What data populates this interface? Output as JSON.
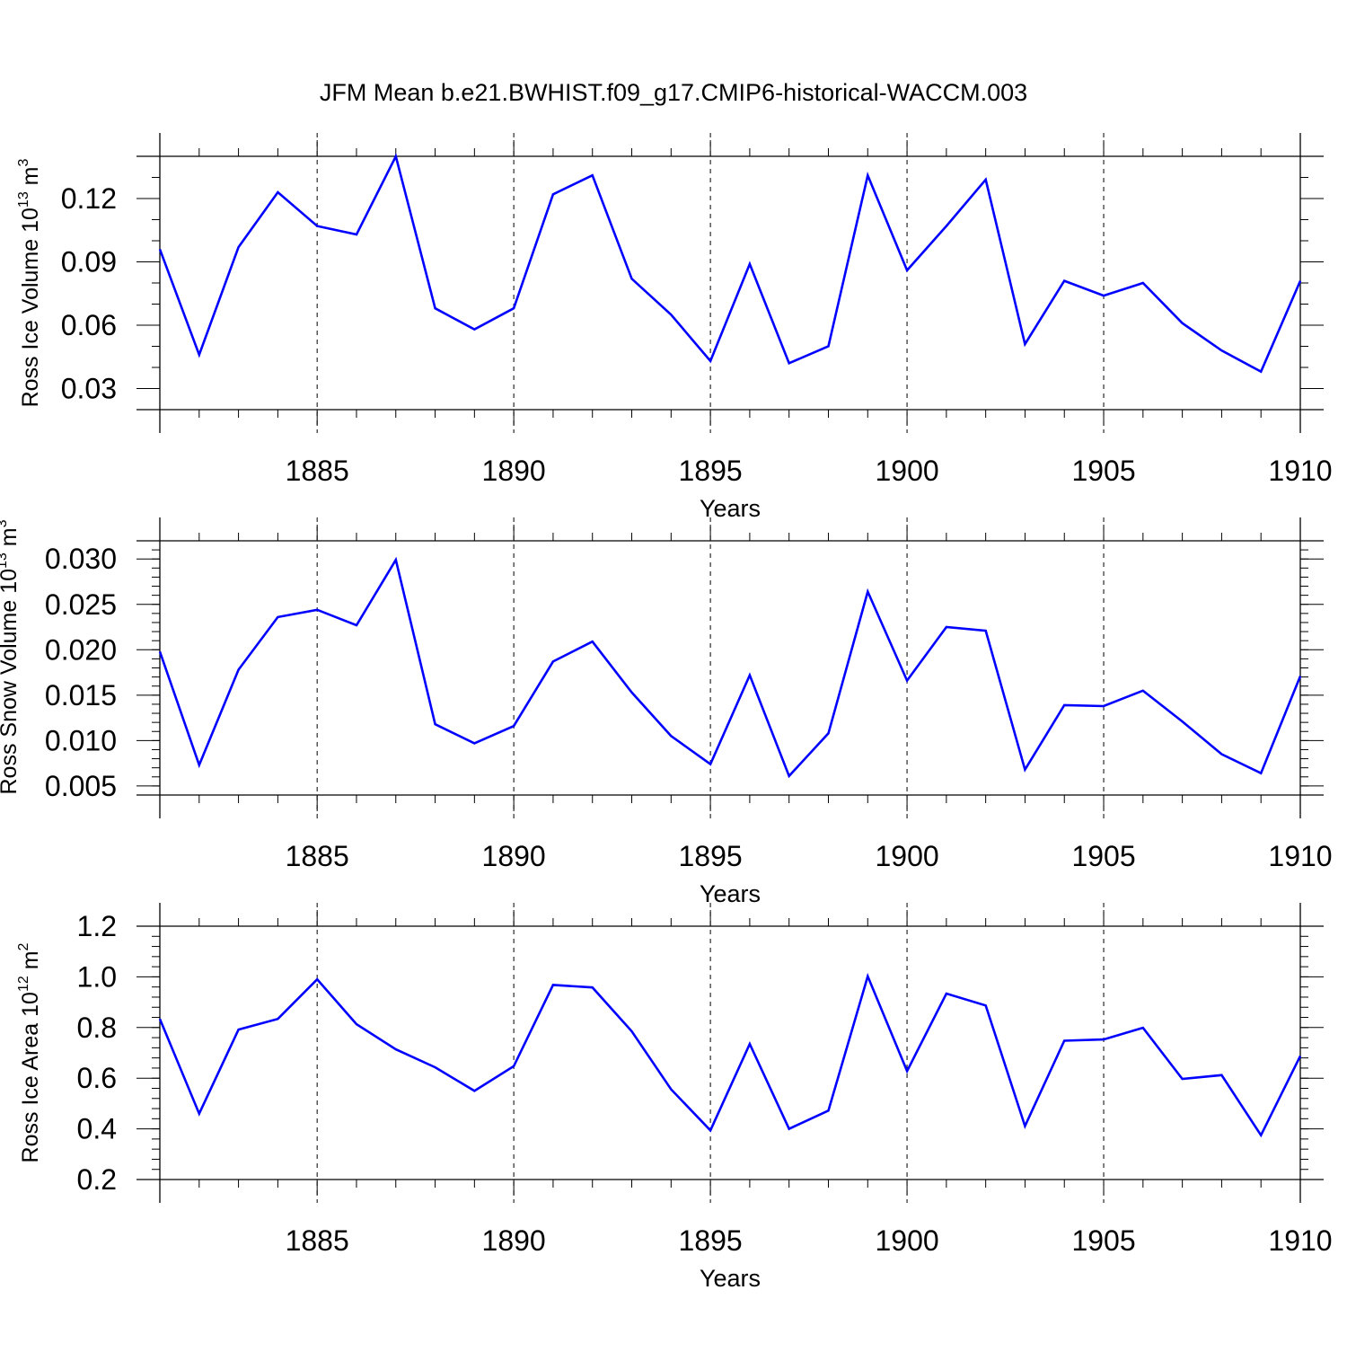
{
  "title": "JFM Mean b.e21.BWHIST.f09_g17.CMIP6-historical-WACCM.003",
  "colors": {
    "line": "#0000ff",
    "axis": "#000000",
    "grid": "#000000"
  },
  "chart_data": [
    {
      "type": "line",
      "xlabel": "Years",
      "ylabel": {
        "prefix": "Ross Ice Volume 10",
        "exp1": "13",
        "mid": " m",
        "exp2": "3"
      },
      "xlim": [
        1881,
        1910
      ],
      "ylim": [
        0.02,
        0.14
      ],
      "xticks": [
        1885,
        1890,
        1895,
        1900,
        1905,
        1910
      ],
      "yticks": [
        0.03,
        0.06,
        0.09,
        0.12
      ],
      "ytick_labels": [
        "0.03",
        "0.06",
        "0.09",
        "0.12"
      ],
      "ytick_minor": 0.01,
      "grid": "vertical-dashed",
      "x": [
        1881,
        1882,
        1883,
        1884,
        1885,
        1886,
        1887,
        1888,
        1889,
        1890,
        1891,
        1892,
        1893,
        1894,
        1895,
        1896,
        1897,
        1898,
        1899,
        1900,
        1901,
        1902,
        1903,
        1904,
        1905,
        1906,
        1907,
        1908,
        1909,
        1910
      ],
      "values": [
        0.096,
        0.046,
        0.097,
        0.123,
        0.107,
        0.103,
        0.14,
        0.068,
        0.058,
        0.068,
        0.122,
        0.131,
        0.082,
        0.065,
        0.043,
        0.089,
        0.042,
        0.05,
        0.131,
        0.086,
        0.107,
        0.129,
        0.051,
        0.081,
        0.074,
        0.08,
        0.061,
        0.048,
        0.038,
        0.081
      ]
    },
    {
      "type": "line",
      "xlabel": "Years",
      "ylabel": {
        "prefix": "Ross Snow Volume 10",
        "exp1": "13",
        "mid": " m",
        "exp2": "3"
      },
      "xlim": [
        1881,
        1910
      ],
      "ylim": [
        0.004,
        0.032
      ],
      "xticks": [
        1885,
        1890,
        1895,
        1900,
        1905,
        1910
      ],
      "yticks": [
        0.005,
        0.01,
        0.015,
        0.02,
        0.025,
        0.03
      ],
      "ytick_labels": [
        "0.005",
        "0.010",
        "0.015",
        "0.020",
        "0.025",
        "0.030"
      ],
      "ytick_minor": 0.001,
      "grid": "vertical-dashed",
      "x": [
        1881,
        1882,
        1883,
        1884,
        1885,
        1886,
        1887,
        1888,
        1889,
        1890,
        1891,
        1892,
        1893,
        1894,
        1895,
        1896,
        1897,
        1898,
        1899,
        1900,
        1901,
        1902,
        1903,
        1904,
        1905,
        1906,
        1907,
        1908,
        1909,
        1910
      ],
      "values": [
        0.0198,
        0.0073,
        0.0178,
        0.0236,
        0.0244,
        0.0227,
        0.0299,
        0.0118,
        0.0097,
        0.0116,
        0.0187,
        0.0209,
        0.0153,
        0.0105,
        0.0074,
        0.0172,
        0.0061,
        0.0108,
        0.0264,
        0.0166,
        0.0225,
        0.0221,
        0.0068,
        0.0139,
        0.0138,
        0.0155,
        0.0121,
        0.0085,
        0.0064,
        0.0171
      ]
    },
    {
      "type": "line",
      "xlabel": "Years",
      "ylabel": {
        "prefix": "Ross Ice Area 10",
        "exp1": "12",
        "mid": " m",
        "exp2": "2"
      },
      "xlim": [
        1881,
        1910
      ],
      "ylim": [
        0.2,
        1.2
      ],
      "xticks": [
        1885,
        1890,
        1895,
        1900,
        1905,
        1910
      ],
      "yticks": [
        0.2,
        0.4,
        0.6,
        0.8,
        1.0,
        1.2
      ],
      "ytick_labels": [
        "0.2",
        "0.4",
        "0.6",
        "0.8",
        "1.0",
        "1.2"
      ],
      "ytick_minor": 0.04,
      "grid": "vertical-dashed",
      "x": [
        1881,
        1882,
        1883,
        1884,
        1885,
        1886,
        1887,
        1888,
        1889,
        1890,
        1891,
        1892,
        1893,
        1894,
        1895,
        1896,
        1897,
        1898,
        1899,
        1900,
        1901,
        1902,
        1903,
        1904,
        1905,
        1906,
        1907,
        1908,
        1909,
        1910
      ],
      "values": [
        0.834,
        0.46,
        0.792,
        0.834,
        0.99,
        0.813,
        0.714,
        0.643,
        0.55,
        0.647,
        0.968,
        0.958,
        0.785,
        0.556,
        0.394,
        0.735,
        0.4,
        0.472,
        1.002,
        0.628,
        0.934,
        0.887,
        0.411,
        0.748,
        0.753,
        0.799,
        0.597,
        0.612,
        0.375,
        0.688
      ]
    }
  ]
}
